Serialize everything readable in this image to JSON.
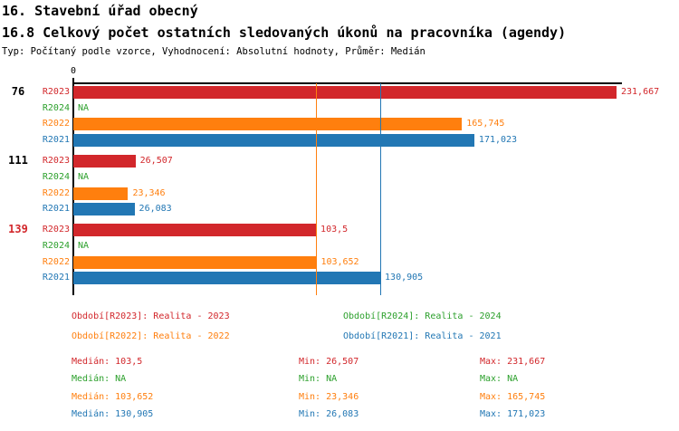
{
  "header": {
    "title": "16. Stavební úřad obecný",
    "subtitle": "16.8 Celkový počet ostatních sledovaných úkonů na pracovníka (agendy)",
    "meta": "Typ: Počítaný podle vzorce, Vyhodnocení: Absolutní hodnoty, Průměr: Medián"
  },
  "colors": {
    "R2023": "#d2272b",
    "R2024": "#2ca02c",
    "R2022": "#ff7f0e",
    "R2021": "#2277b4",
    "axis": "#000000",
    "group_label_default": "#000000"
  },
  "chart_data": {
    "type": "bar",
    "orientation": "horizontal",
    "title": "16.8 Celkový počet ostatních sledovaných úkonů na pracovníka (agendy)",
    "xlabel": "",
    "ylabel": "",
    "xlim": [
      0,
      234
    ],
    "origin_tick_label": "0",
    "grid": false,
    "series_order": [
      "R2023",
      "R2024",
      "R2022",
      "R2021"
    ],
    "groups": [
      {
        "label": "76",
        "label_color": "#000000",
        "bars": [
          {
            "series": "R2023",
            "value": 231.667,
            "display": "231,667"
          },
          {
            "series": "R2024",
            "value": null,
            "display": "NA"
          },
          {
            "series": "R2022",
            "value": 165.745,
            "display": "165,745"
          },
          {
            "series": "R2021",
            "value": 171.023,
            "display": "171,023"
          }
        ]
      },
      {
        "label": "111",
        "label_color": "#000000",
        "bars": [
          {
            "series": "R2023",
            "value": 26.507,
            "display": "26,507"
          },
          {
            "series": "R2024",
            "value": null,
            "display": "NA"
          },
          {
            "series": "R2022",
            "value": 23.346,
            "display": "23,346"
          },
          {
            "series": "R2021",
            "value": 26.083,
            "display": "26,083"
          }
        ]
      },
      {
        "label": "139",
        "label_color": "#d2272b",
        "bars": [
          {
            "series": "R2023",
            "value": 103.5,
            "display": "103,5"
          },
          {
            "series": "R2024",
            "value": null,
            "display": "NA"
          },
          {
            "series": "R2022",
            "value": 103.652,
            "display": "103,652"
          },
          {
            "series": "R2021",
            "value": 130.905,
            "display": "130,905"
          }
        ]
      }
    ],
    "median_lines": [
      {
        "series": "R2023",
        "value": 103.5
      },
      {
        "series": "R2022",
        "value": 103.652
      },
      {
        "series": "R2021",
        "value": 130.905
      }
    ]
  },
  "legend": [
    {
      "series": "R2023",
      "col": 0,
      "row": 0,
      "text": "Období[R2023]: Realita - 2023"
    },
    {
      "series": "R2024",
      "col": 1,
      "row": 0,
      "text": "Období[R2024]: Realita - 2024"
    },
    {
      "series": "R2022",
      "col": 0,
      "row": 1,
      "text": "Období[R2022]: Realita - 2022"
    },
    {
      "series": "R2021",
      "col": 1,
      "row": 1,
      "text": "Období[R2021]: Realita - 2021"
    }
  ],
  "stats": [
    {
      "series": "R2023",
      "median": "Medián: 103,5",
      "min": "Min: 26,507",
      "max": "Max: 231,667"
    },
    {
      "series": "R2024",
      "median": "Medián: NA",
      "min": "Min: NA",
      "max": "Max: NA"
    },
    {
      "series": "R2022",
      "median": "Medián: 103,652",
      "min": "Min: 23,346",
      "max": "Max: 165,745"
    },
    {
      "series": "R2021",
      "median": "Medián: 130,905",
      "min": "Min: 26,083",
      "max": "Max: 171,023"
    }
  ]
}
